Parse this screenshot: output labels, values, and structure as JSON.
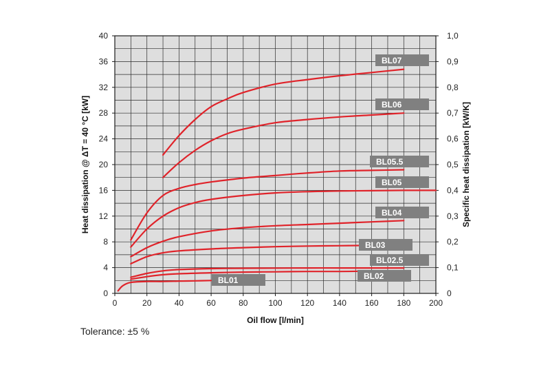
{
  "chart_data": {
    "type": "line",
    "xlabel": "Oil flow [l/min]",
    "ylabel": "Heat dissipation @ ΔT = 40 °C [kW]",
    "y2label": "Specific heat dissipation [kW/K]",
    "xlim": [
      0,
      200
    ],
    "ylim": [
      0,
      40
    ],
    "y2lim": [
      0,
      1.0
    ],
    "xticks": [
      "0",
      "20",
      "40",
      "60",
      "80",
      "100",
      "120",
      "140",
      "160",
      "180",
      "200"
    ],
    "yticks": [
      "0",
      "4",
      "8",
      "12",
      "16",
      "20",
      "24",
      "28",
      "32",
      "36",
      "40"
    ],
    "y2ticks": [
      "0",
      "0,1",
      "0,2",
      "0,3",
      "0,4",
      "0,5",
      "0,6",
      "0,7",
      "0,8",
      "0,9",
      "1,0"
    ],
    "grid": true,
    "line_color": "#e0232a",
    "label_color": "#808080",
    "series": [
      {
        "name": "BL07",
        "x": [
          30,
          40,
          50,
          60,
          70,
          80,
          100,
          120,
          140,
          160,
          180
        ],
        "y": [
          21.5,
          24.5,
          27,
          29,
          30.2,
          31.2,
          32.5,
          33.2,
          33.8,
          34.3,
          34.8
        ]
      },
      {
        "name": "BL06",
        "x": [
          30,
          40,
          50,
          60,
          70,
          80,
          100,
          120,
          140,
          160,
          180
        ],
        "y": [
          18,
          20.3,
          22.2,
          23.7,
          24.8,
          25.5,
          26.5,
          27,
          27.4,
          27.7,
          28
        ]
      },
      {
        "name": "BL05.5",
        "x": [
          10,
          20,
          30,
          40,
          50,
          60,
          80,
          100,
          120,
          140,
          160,
          180
        ],
        "y": [
          8.3,
          12.5,
          15.2,
          16.3,
          16.9,
          17.3,
          17.9,
          18.3,
          18.7,
          19,
          19.1,
          19.2
        ]
      },
      {
        "name": "BL05",
        "x": [
          10,
          20,
          30,
          40,
          50,
          60,
          80,
          100,
          120,
          140,
          160,
          180,
          200
        ],
        "y": [
          7.2,
          10,
          12,
          13.3,
          14.1,
          14.6,
          15.2,
          15.6,
          15.8,
          15.9,
          15.95,
          16,
          16
        ]
      },
      {
        "name": "BL04",
        "x": [
          10,
          20,
          30,
          40,
          60,
          80,
          100,
          120,
          140,
          160,
          180
        ],
        "y": [
          5.7,
          7.1,
          8.1,
          8.8,
          9.7,
          10.2,
          10.5,
          10.7,
          10.9,
          11.1,
          11.3
        ]
      },
      {
        "name": "BL03",
        "x": [
          10,
          20,
          30,
          40,
          60,
          80,
          100,
          120,
          140,
          160,
          170
        ],
        "y": [
          4.6,
          5.7,
          6.3,
          6.6,
          6.9,
          7.1,
          7.25,
          7.35,
          7.4,
          7.45,
          7.45
        ]
      },
      {
        "name": "BL02.5",
        "x": [
          10,
          20,
          30,
          40,
          60,
          80,
          100,
          120,
          140,
          160,
          180
        ],
        "y": [
          2.5,
          3.1,
          3.5,
          3.7,
          3.85,
          3.9,
          3.92,
          3.95,
          3.95,
          3.95,
          3.95
        ]
      },
      {
        "name": "BL02",
        "x": [
          10,
          20,
          30,
          40,
          60,
          80,
          100,
          120,
          140,
          160,
          180
        ],
        "y": [
          2.2,
          2.6,
          2.9,
          3.05,
          3.2,
          3.3,
          3.35,
          3.4,
          3.4,
          3.45,
          3.45
        ]
      },
      {
        "name": "BL01",
        "x": [
          2,
          5,
          10,
          20,
          30,
          40,
          50,
          60
        ],
        "y": [
          0.4,
          1.2,
          1.7,
          1.85,
          1.85,
          1.9,
          1.95,
          2.0
        ]
      }
    ]
  },
  "footnote": "Tolerance: ±5 %"
}
